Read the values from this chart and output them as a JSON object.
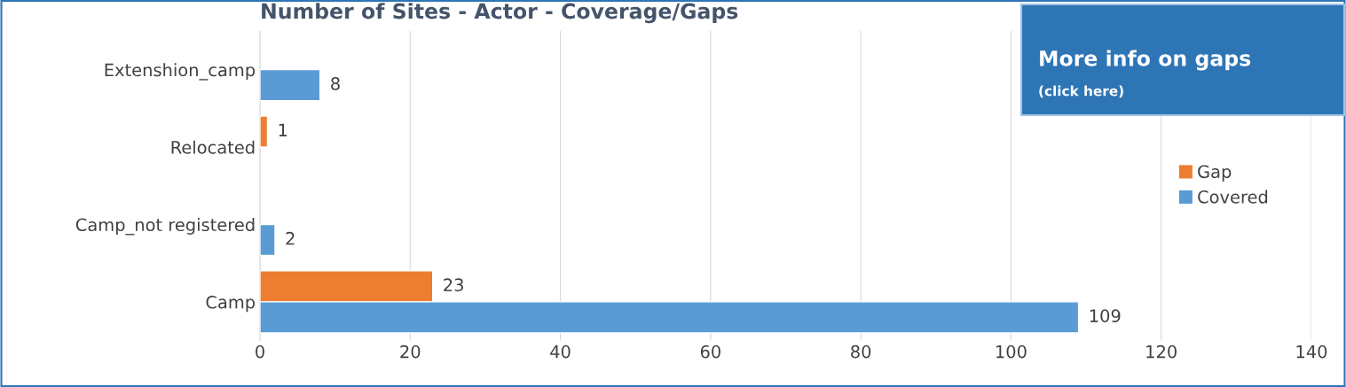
{
  "chart_data": {
    "type": "bar",
    "orientation": "horizontal",
    "title": "Number of Sites - Actor - Coverage/Gaps",
    "categories": [
      "Extenshion_camp",
      "Relocated",
      "Camp_not registered",
      "Camp"
    ],
    "series": [
      {
        "name": "Gap",
        "color": "#ed7d31",
        "values": [
          null,
          1,
          null,
          23
        ]
      },
      {
        "name": "Covered",
        "color": "#5b9bd5",
        "values": [
          8,
          null,
          2,
          109
        ]
      }
    ],
    "xlim": [
      0,
      140
    ],
    "xticks": [
      0,
      20,
      40,
      60,
      80,
      100,
      120,
      140
    ],
    "grid": "x",
    "legend": "right",
    "data_labels": true,
    "annotations": [
      "More info on gaps",
      "(click here)"
    ]
  }
}
